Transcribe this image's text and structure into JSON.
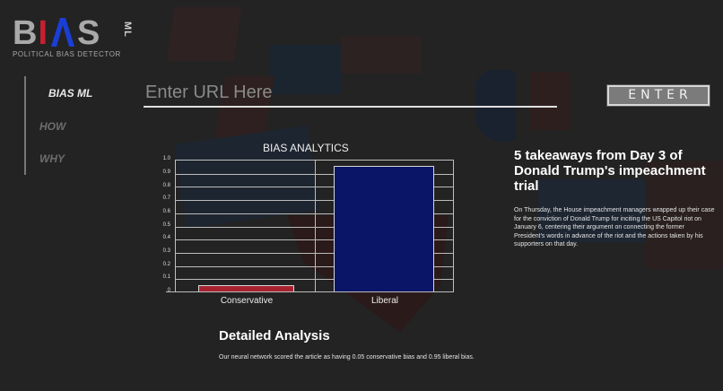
{
  "brand": {
    "letters": [
      "B",
      "I",
      "A",
      "S"
    ],
    "suffix": "ML",
    "tagline": "POLITICAL BIAS DETECTOR",
    "colors": {
      "gray": "#a9a9a9",
      "red": "#c8202f",
      "blue": "#1a3fd6"
    }
  },
  "nav": {
    "items": [
      {
        "label": "BIAS ML",
        "active": true
      },
      {
        "label": "HOW",
        "active": false
      },
      {
        "label": "WHY",
        "active": false
      }
    ]
  },
  "search": {
    "placeholder": "Enter URL Here",
    "value": "",
    "button_label": "ENTER"
  },
  "chart_data": {
    "type": "bar",
    "title": "BIAS ANALYTICS",
    "categories": [
      "Conservative",
      "Liberal"
    ],
    "values": [
      0.05,
      0.95
    ],
    "colors": [
      "#a8222f",
      "#0a1568"
    ],
    "xlabel": "",
    "ylabel": "",
    "ylim": [
      0,
      1.0
    ],
    "yticks": [
      "0",
      "0.1",
      "0.2",
      "0.3",
      "0.4",
      "0.5",
      "0.6",
      "0.7",
      "0.8",
      "0.9",
      "1.0"
    ],
    "grid": true,
    "legend": false
  },
  "article": {
    "title": "5 takeaways from Day 3 of Donald Trump's impeachment trial",
    "summary": "On Thursday, the House impeachment managers wrapped up their case for the conviction of Donald Trump for inciting the US Capitol riot on January 6, centering their argument on connecting the former President's words in advance of the riot and the actions taken by his supporters on that day."
  },
  "analysis": {
    "heading": "Detailed Analysis",
    "text": "Our neural network scored the article as having 0.05 conservative bias and 0.95 liberal bias."
  }
}
